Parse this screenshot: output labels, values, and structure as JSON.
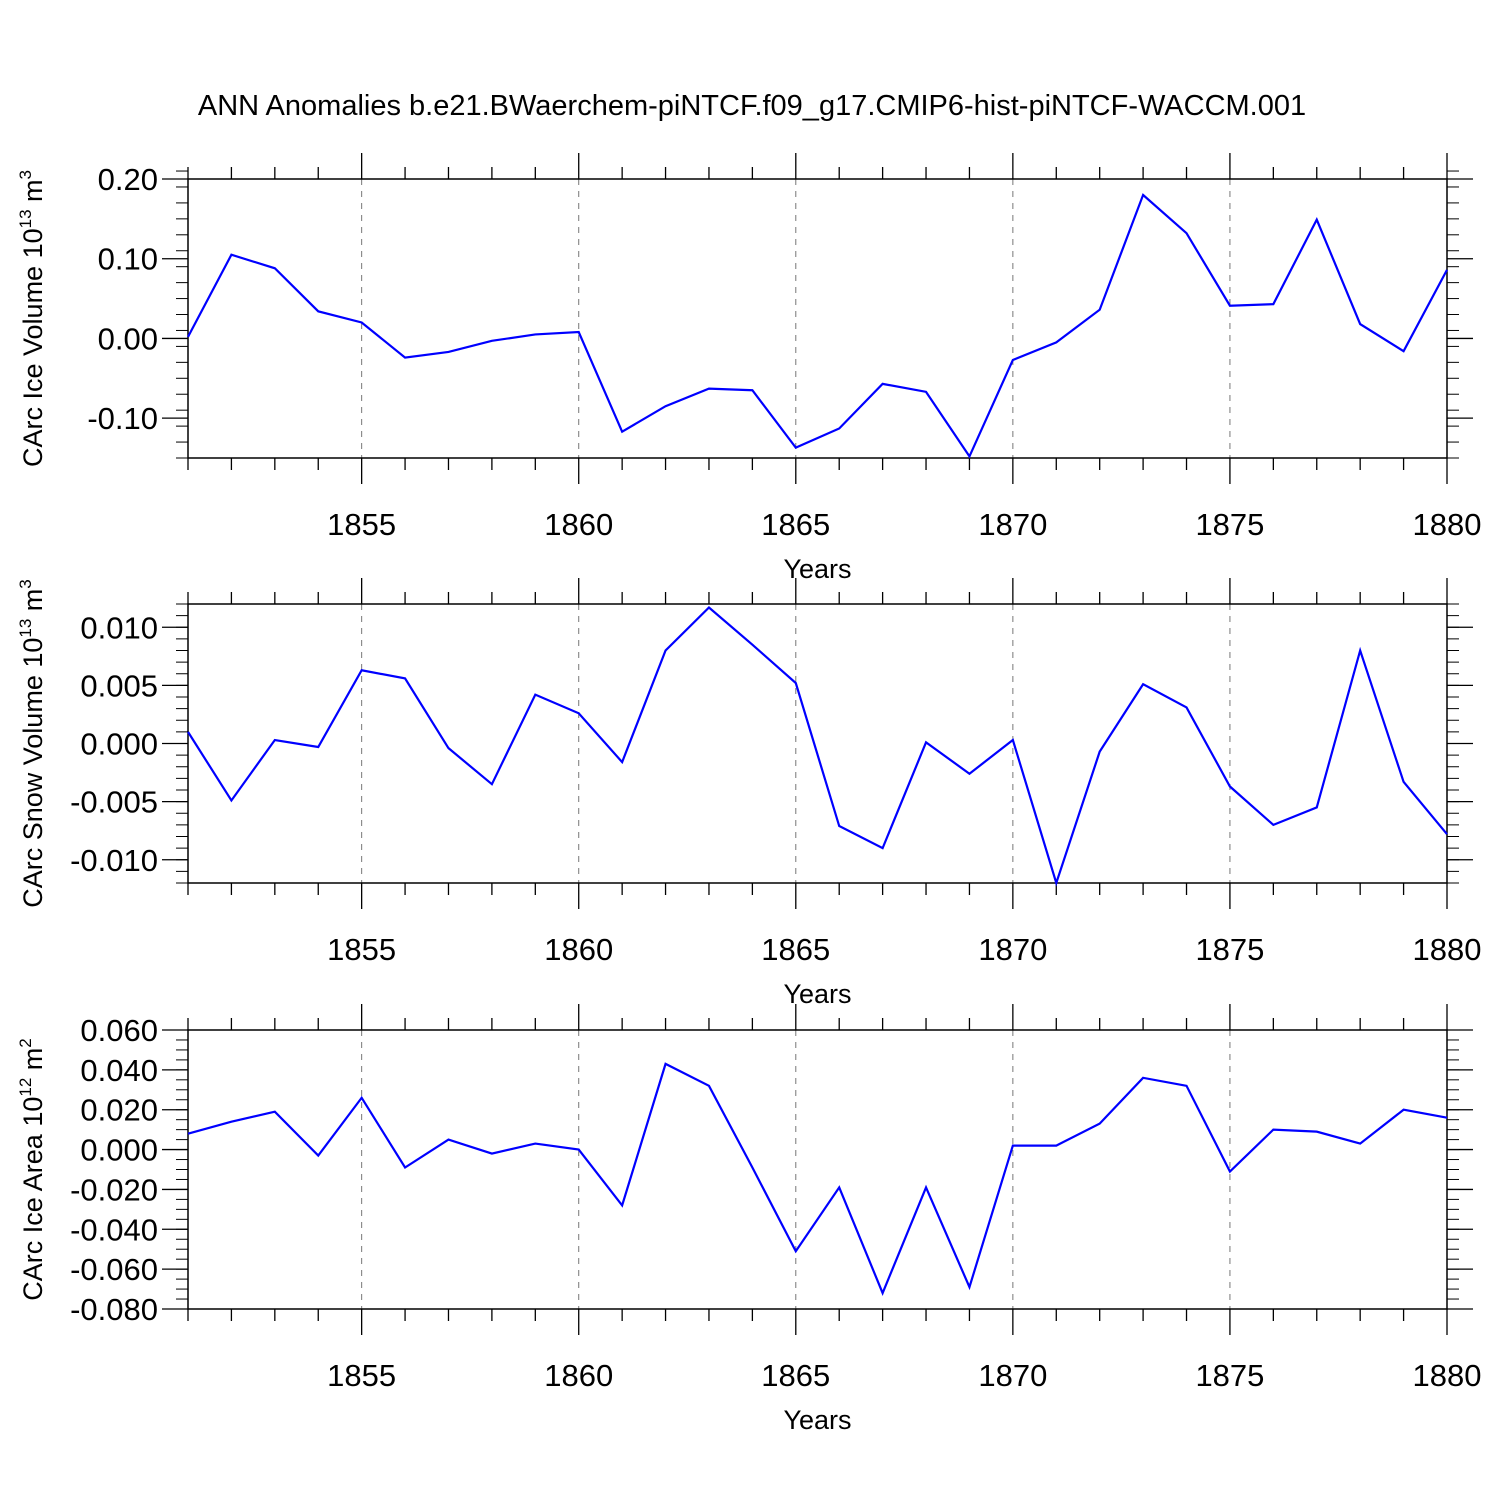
{
  "title": "ANN Anomalies b.e21.BWaerchem-piNTCF.f09_g17.CMIP6-hist-piNTCF-WACCM.001",
  "line_color": "#0000ff",
  "chart_data": [
    {
      "type": "line",
      "xlabel": "Years",
      "ylabel": {
        "base": "CArc Ice Volume 10",
        "exp": "13",
        "unit": " m",
        "unit_exp": "3"
      },
      "xlim": [
        1851,
        1880
      ],
      "ylim": [
        -0.15,
        0.2
      ],
      "x_ticks": [
        1855,
        1860,
        1865,
        1870,
        1875,
        1880
      ],
      "y_ticks": [
        -0.1,
        0.0,
        0.1,
        0.2
      ],
      "y_tick_labels": [
        "-0.10",
        "0.00",
        "0.10",
        "0.20"
      ],
      "y_minor_step": 0.02,
      "series": [
        {
          "name": "CArc Ice Volume",
          "x": [
            1851,
            1852,
            1853,
            1854,
            1855,
            1856,
            1857,
            1858,
            1859,
            1860,
            1861,
            1862,
            1863,
            1864,
            1865,
            1866,
            1867,
            1868,
            1869,
            1870,
            1871,
            1872,
            1873,
            1874,
            1875,
            1876,
            1877,
            1878,
            1879,
            1880
          ],
          "values": [
            0.002,
            0.105,
            0.088,
            0.034,
            0.02,
            -0.024,
            -0.017,
            -0.003,
            0.005,
            0.008,
            -0.117,
            -0.085,
            -0.063,
            -0.065,
            -0.137,
            -0.113,
            -0.057,
            -0.067,
            -0.148,
            -0.027,
            -0.005,
            0.036,
            0.18,
            0.132,
            0.041,
            0.043,
            0.149,
            0.018,
            -0.016,
            0.086
          ]
        }
      ]
    },
    {
      "type": "line",
      "xlabel": "Years",
      "ylabel": {
        "base": "CArc Snow Volume 10",
        "exp": "13",
        "unit": " m",
        "unit_exp": "3"
      },
      "xlim": [
        1851,
        1880
      ],
      "ylim": [
        -0.012,
        0.012
      ],
      "x_ticks": [
        1855,
        1860,
        1865,
        1870,
        1875,
        1880
      ],
      "y_ticks": [
        -0.01,
        -0.005,
        0.0,
        0.005,
        0.01
      ],
      "y_tick_labels": [
        "-0.010",
        "-0.005",
        "0.000",
        "0.005",
        "0.010"
      ],
      "y_minor_step": 0.001,
      "series": [
        {
          "name": "CArc Snow Volume",
          "x": [
            1851,
            1852,
            1853,
            1854,
            1855,
            1856,
            1857,
            1858,
            1859,
            1860,
            1861,
            1862,
            1863,
            1864,
            1865,
            1866,
            1867,
            1868,
            1869,
            1870,
            1871,
            1872,
            1873,
            1874,
            1875,
            1876,
            1877,
            1878,
            1879,
            1880
          ],
          "values": [
            0.001,
            -0.0049,
            0.0003,
            -0.0003,
            0.0063,
            0.0056,
            -0.0004,
            -0.0035,
            0.0042,
            0.0026,
            -0.0016,
            0.008,
            0.0117,
            0.0085,
            0.0052,
            -0.0071,
            -0.009,
            0.0001,
            -0.0026,
            0.0003,
            -0.012,
            -0.0007,
            0.0051,
            0.0031,
            -0.0037,
            -0.007,
            -0.0055,
            0.008,
            -0.0033,
            -0.0078
          ]
        }
      ]
    },
    {
      "type": "line",
      "xlabel": "Years",
      "ylabel": {
        "base": "CArc Ice Area 10",
        "exp": "12",
        "unit": " m",
        "unit_exp": "2"
      },
      "xlim": [
        1851,
        1880
      ],
      "ylim": [
        -0.08,
        0.06
      ],
      "x_ticks": [
        1855,
        1860,
        1865,
        1870,
        1875,
        1880
      ],
      "y_ticks": [
        -0.08,
        -0.06,
        -0.04,
        -0.02,
        0.0,
        0.02,
        0.04,
        0.06
      ],
      "y_tick_labels": [
        "-0.080",
        "-0.060",
        "-0.040",
        "-0.020",
        "0.000",
        "0.020",
        "0.040",
        "0.060"
      ],
      "y_minor_step": 0.005,
      "series": [
        {
          "name": "CArc Ice Area",
          "x": [
            1851,
            1852,
            1853,
            1854,
            1855,
            1856,
            1857,
            1858,
            1859,
            1860,
            1861,
            1862,
            1863,
            1864,
            1865,
            1866,
            1867,
            1868,
            1869,
            1870,
            1871,
            1872,
            1873,
            1874,
            1875,
            1876,
            1877,
            1878,
            1879,
            1880
          ],
          "values": [
            0.008,
            0.014,
            0.019,
            -0.003,
            0.026,
            -0.009,
            0.005,
            -0.002,
            0.003,
            0.0,
            -0.028,
            0.043,
            0.032,
            -0.009,
            -0.051,
            -0.019,
            -0.072,
            -0.019,
            -0.069,
            0.002,
            0.002,
            0.013,
            0.036,
            0.032,
            -0.011,
            0.01,
            0.009,
            0.003,
            0.02,
            0.016
          ]
        }
      ]
    }
  ]
}
